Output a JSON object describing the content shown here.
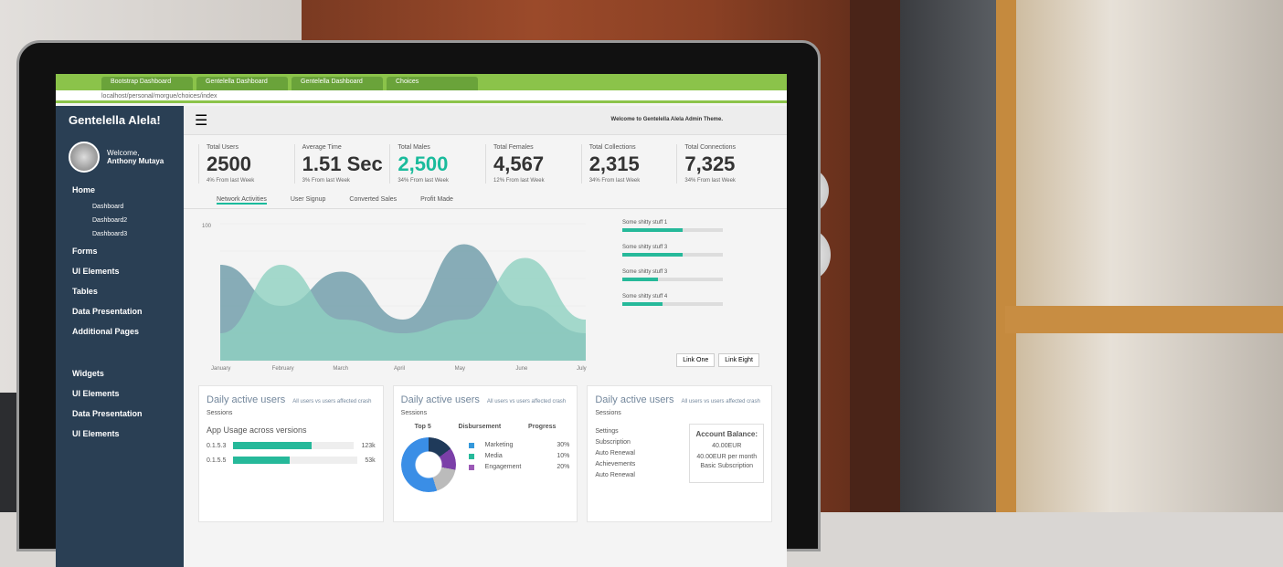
{
  "browser": {
    "tabs": [
      "Bootstrap Dashboard",
      "Gentelella Dashboard",
      "Gentelella Dashboard",
      "Choices"
    ],
    "url": "localhost/personal/morgue/choices/index"
  },
  "sidebar": {
    "brand": "Gentelella Alela!",
    "welcome": "Welcome,",
    "user": "Anthony Mutaya",
    "items": [
      {
        "label": "Home",
        "sub": [
          "Dashboard",
          "Dashboard2",
          "Dashboard3"
        ]
      },
      {
        "label": "Forms"
      },
      {
        "label": "UI Elements"
      },
      {
        "label": "Tables"
      },
      {
        "label": "Data Presentation"
      },
      {
        "label": "Additional Pages"
      },
      {
        "label": "Widgets"
      },
      {
        "label": "UI Elements"
      },
      {
        "label": "Data Presentation"
      },
      {
        "label": "UI Elements"
      }
    ]
  },
  "topbar": {
    "welcome": "Welcome to Gentelella Alela Admin Theme."
  },
  "stats": [
    {
      "label": "Total Users",
      "value": "2500",
      "change": "4% From last Week"
    },
    {
      "label": "Average Time",
      "value": "1.51 Sec",
      "change": "3% From last Week"
    },
    {
      "label": "Total Males",
      "value": "2,500",
      "change": "34% From last Week"
    },
    {
      "label": "Total Females",
      "value": "4,567",
      "change": "12% From last Week"
    },
    {
      "label": "Total Collections",
      "value": "2,315",
      "change": "34% From last Week"
    },
    {
      "label": "Total Connections",
      "value": "7,325",
      "change": "34% From last Week"
    }
  ],
  "chart_tabs": [
    "Network Activities",
    "User Signup",
    "Converted Sales",
    "Profit Made"
  ],
  "chart": {
    "months": [
      "January",
      "February",
      "March",
      "April",
      "May",
      "June",
      "July"
    ],
    "ytick": "100",
    "series": [
      [
        70,
        40,
        65,
        30,
        85,
        40,
        20
      ],
      [
        20,
        70,
        30,
        20,
        30,
        75,
        30
      ]
    ],
    "colors": [
      "#6b9aa8",
      "#8fd1c1"
    ]
  },
  "legend": [
    {
      "label": "Some shitty stuff 1",
      "pct": 60
    },
    {
      "label": "Some shitty stuff 3",
      "pct": 60
    },
    {
      "label": "Some shitty stuff 3",
      "pct": 35
    },
    {
      "label": "Some shitty stuff 4",
      "pct": 40
    }
  ],
  "buttons": [
    "Link One",
    "Link Eight"
  ],
  "panels": [
    {
      "title": "Daily active users",
      "note": "All users vs users affected crash",
      "sub": "Sessions",
      "heading": "App Usage across versions",
      "rows": [
        {
          "label": "0.1.5.3",
          "value": "123k",
          "pct": 65
        },
        {
          "label": "0.1.5.5",
          "value": "53k",
          "pct": 45
        }
      ]
    },
    {
      "title": "Daily active users",
      "note": "All users vs users affected crash",
      "sub": "Sessions",
      "cols": [
        "Top 5",
        "Disbursement",
        "Progress"
      ],
      "items": [
        {
          "label": "Marketing",
          "pct": "30%",
          "color": "#3498db"
        },
        {
          "label": "Media",
          "pct": "10%",
          "color": "#26b99a"
        },
        {
          "label": "Engagement",
          "pct": "20%",
          "color": "#9b59b6"
        }
      ]
    },
    {
      "title": "Daily active users",
      "note": "All users vs users affected crash",
      "sub": "Sessions",
      "list": [
        "Settings",
        "Subscription",
        "Auto Renewal",
        "Achievements",
        "Auto Renewal"
      ],
      "balance_title": "Account Balance:",
      "balance": "40.00EUR",
      "per_month": "40.00EUR per month",
      "plan": "Basic Subscription"
    }
  ]
}
